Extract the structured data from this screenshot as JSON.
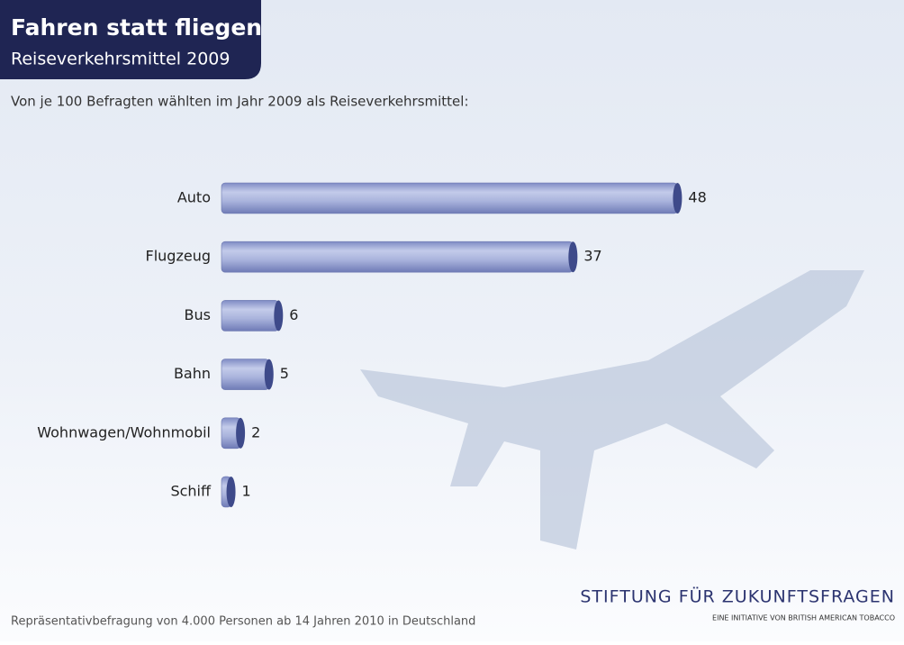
{
  "chart_data": {
    "type": "bar",
    "orientation": "horizontal",
    "title": "Fahren statt fliegen",
    "subtitle": "Reiseverkehrsmittel 2009",
    "description": "Von je 100 Befragten wählten im Jahr 2009 als Reiseverkehrsmittel:",
    "categories": [
      "Auto",
      "Flugzeug",
      "Bus",
      "Bahn",
      "Wohnwagen/Wohnmobil",
      "Schiff"
    ],
    "values": [
      48,
      37,
      6,
      5,
      2,
      1
    ],
    "color": "#a9b3dc",
    "footnote": "Repräsentativbefragung von 4.000 Personen ab 14 Jahren 2010 in Deutschland",
    "brand": "STIFTUNG FÜR ZUKUNFTSFRAGEN",
    "brand_subtitle": "EINE INITIATIVE VON BRITISH AMERICAN TOBACCO"
  }
}
